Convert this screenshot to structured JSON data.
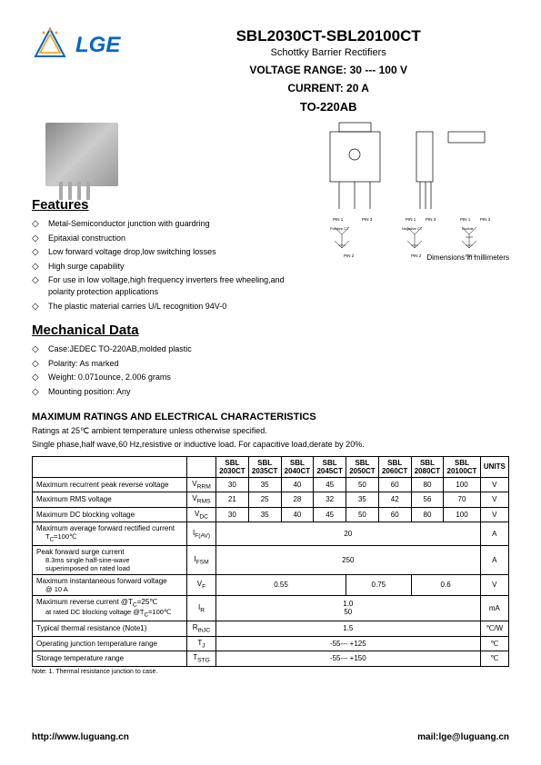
{
  "logo": {
    "text": "LGE",
    "color": "#0066cc"
  },
  "title": "SBL2030CT-SBL20100CT",
  "subtitle": "Schottky Barrier Rectifiers",
  "voltage_range": "VOLTAGE  RANGE: 30 --- 100 V",
  "current": "CURRENT: 20 A",
  "package": "TO-220AB",
  "features_title": "Features",
  "features": [
    "Metal-Semiconductor junction with guardring",
    "Epitaxial construction",
    "Low forward voltage drop,low switching losses",
    "High surge capability",
    "For use in low voltage,high frequency inverters free wheeling,and polarity protection applications",
    "The plastic material carries U/L recognition 94V-0"
  ],
  "mechanical_title": "Mechanical Data",
  "mechanical": [
    "Case:JEDEC TO-220AB,molded plastic",
    "Polarity: As marked",
    "Weight: 0.071ounce, 2.006 grams",
    "Mounting position: Any"
  ],
  "dim_note": "Dimensions in millimeters",
  "max_title": "MAXIMUM RATINGS AND ELECTRICAL CHARACTERISTICS",
  "max_sub1": "Ratings at 25℃ ambient temperature unless otherwise specified.",
  "max_sub2": "Single phase,half wave,60 Hz,resistive or inductive load. For capacitive load,derate by 20%.",
  "table": {
    "models": [
      "SBL 2030CT",
      "SBL 2035CT",
      "SBL 2040CT",
      "SBL 2045CT",
      "SBL 2050CT",
      "SBL 2060CT",
      "SBL 2080CT",
      "SBL 20100CT"
    ],
    "units_header": "UNITS",
    "rows": [
      {
        "param": "Maximum recurrent peak reverse voltage",
        "sym": "V",
        "sub": "RRM",
        "vals": [
          "30",
          "35",
          "40",
          "45",
          "50",
          "60",
          "80",
          "100"
        ],
        "unit": "V"
      },
      {
        "param": "Maximum RMS voltage",
        "sym": "V",
        "sub": "RMS",
        "vals": [
          "21",
          "25",
          "28",
          "32",
          "35",
          "42",
          "56",
          "70"
        ],
        "unit": "V"
      },
      {
        "param": "Maximum DC blocking voltage",
        "sym": "V",
        "sub": "DC",
        "vals": [
          "30",
          "35",
          "40",
          "45",
          "50",
          "60",
          "80",
          "100"
        ],
        "unit": "V"
      },
      {
        "param": "Maximum average forward rectified current",
        "param2": "T<sub>C</sub>=100℃",
        "sym": "I",
        "sub": "F(AV)",
        "span8": "20",
        "unit": "A"
      },
      {
        "param": "Peak forward surge current",
        "param2": "8.3ms single half-sine-wave",
        "param3": "superimposed on rated load",
        "sym": "I",
        "sub": "FSM",
        "span8": "250",
        "unit": "A"
      },
      {
        "param": "Maximum instantaneous forward voltage",
        "param2": "@ 10 A",
        "sym": "V",
        "sub": "F",
        "groups": [
          [
            "0.55",
            4
          ],
          [
            "0.75",
            2
          ],
          [
            "0.6",
            2
          ]
        ],
        "unit": "V"
      },
      {
        "param": "Maximum reverse current           @T<sub>C</sub>=25℃",
        "param2": "at rated DC blocking voltage  @T<sub>C</sub>=100℃",
        "sym": "I",
        "sub": "R",
        "stack": [
          "1.0",
          "50"
        ],
        "unit": "mA"
      },
      {
        "param": "Typical thermal resistance         (Note1)",
        "sym": "R",
        "sub": "thJC",
        "span8": "1.5",
        "unit": "℃/W"
      },
      {
        "param": "Operating junction temperature range",
        "sym": "T",
        "sub": "J",
        "span8": "-55--- +125",
        "unit": "℃"
      },
      {
        "param": "Storage temperature range",
        "sym": "T",
        "sub": "STG",
        "span8": "-55--- +150",
        "unit": "℃"
      }
    ],
    "note": "Note: 1. Thermal resistance junction to case."
  },
  "footer": {
    "url": "http://www.luguang.cn",
    "mail": "mail:lge@luguang.cn"
  }
}
